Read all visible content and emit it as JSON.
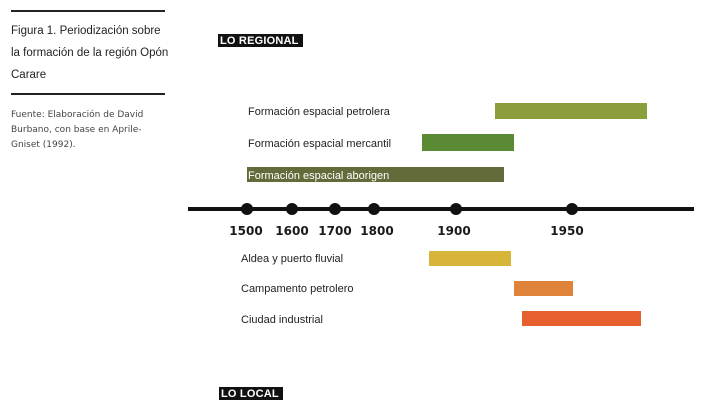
{
  "caption": {
    "title_lines": [
      "Figura 1. Periodización sobre",
      "la formación de la región Opón",
      "Carare"
    ],
    "source_lines": [
      "Fuente: Elaboración de David",
      "Burbano, con base en Aprile-",
      "Gniset (1992)."
    ]
  },
  "sections": {
    "regional": "LO REGIONAL",
    "local": "LO LOCAL"
  },
  "axis": {
    "ticks": [
      "1500",
      "1600",
      "1700",
      "1800",
      "1900",
      "1950"
    ],
    "line_color": "#111111"
  },
  "regional_bars": [
    {
      "label": "Formación espacial petrolera",
      "color": "#8a9e3c"
    },
    {
      "label": "Formación espacial mercantil",
      "color": "#5b8a34"
    },
    {
      "label": "Formación espacial aborigen",
      "color": "#646b3a"
    }
  ],
  "local_bars": [
    {
      "label": "Aldea y puerto fluvial",
      "color": "#d7b43a"
    },
    {
      "label": "Campamento petrolero",
      "color": "#e0833a"
    },
    {
      "label": "Ciudad industrial",
      "color": "#e5602e"
    }
  ]
}
